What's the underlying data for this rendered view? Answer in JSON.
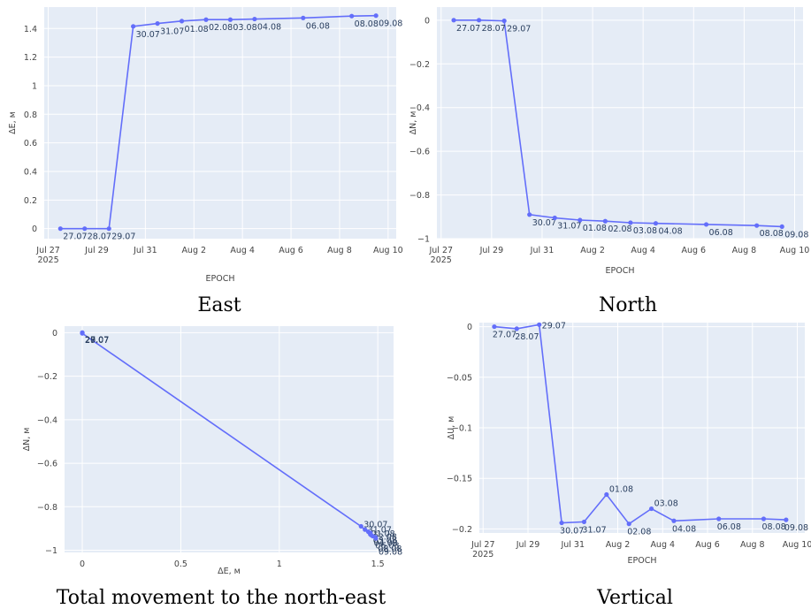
{
  "colors": {
    "plot_bg": "#e5ecf6",
    "grid": "#ffffff",
    "line": "#636efa"
  },
  "chart_data": [
    {
      "type": "line",
      "caption": "East",
      "xlabel": "EPOCH",
      "ylabel": "ΔE, м",
      "xaxis_type": "date",
      "xlim": [
        "2025-07-26T20:00",
        "2025-08-10T08:00"
      ],
      "ylim": [
        -0.07,
        1.55
      ],
      "x_ticks": [
        {
          "value": "2025-07-27",
          "label": "Jul 27",
          "sublabel": "2025"
        },
        {
          "value": "2025-07-29",
          "label": "Jul 29",
          "sublabel": ""
        },
        {
          "value": "2025-07-31",
          "label": "Jul 31",
          "sublabel": ""
        },
        {
          "value": "2025-08-02",
          "label": "Aug 2",
          "sublabel": ""
        },
        {
          "value": "2025-08-04",
          "label": "Aug 4",
          "sublabel": ""
        },
        {
          "value": "2025-08-06",
          "label": "Aug 6",
          "sublabel": ""
        },
        {
          "value": "2025-08-08",
          "label": "Aug 8",
          "sublabel": ""
        },
        {
          "value": "2025-08-10",
          "label": "Aug 10",
          "sublabel": ""
        }
      ],
      "y_ticks": [
        {
          "value": 0,
          "label": "0"
        },
        {
          "value": 0.2,
          "label": "0.2"
        },
        {
          "value": 0.4,
          "label": "0.4"
        },
        {
          "value": 0.6,
          "label": "0.6"
        },
        {
          "value": 0.8,
          "label": "0.8"
        },
        {
          "value": 1,
          "label": "1"
        },
        {
          "value": 1.2,
          "label": "1.2"
        },
        {
          "value": 1.4,
          "label": "1.4"
        }
      ],
      "points": [
        {
          "x": "2025-07-27T12:00",
          "y": 0.0,
          "label": "27.07"
        },
        {
          "x": "2025-07-28T12:00",
          "y": 0.0,
          "label": "28.07"
        },
        {
          "x": "2025-07-29T12:00",
          "y": 0.0,
          "label": "29.07"
        },
        {
          "x": "2025-07-30T12:00",
          "y": 1.415,
          "label": "30.07"
        },
        {
          "x": "2025-07-31T12:00",
          "y": 1.435,
          "label": "31.07"
        },
        {
          "x": "2025-08-01T12:00",
          "y": 1.452,
          "label": "01.08"
        },
        {
          "x": "2025-08-02T12:00",
          "y": 1.462,
          "label": "02.08"
        },
        {
          "x": "2025-08-03T12:00",
          "y": 1.462,
          "label": "03.08"
        },
        {
          "x": "2025-08-04T12:00",
          "y": 1.466,
          "label": "04.08"
        },
        {
          "x": "2025-08-06T12:00",
          "y": 1.474,
          "label": "06.08"
        },
        {
          "x": "2025-08-08T12:00",
          "y": 1.487,
          "label": "08.08"
        },
        {
          "x": "2025-08-09T12:00",
          "y": 1.49,
          "label": "09.08"
        }
      ]
    },
    {
      "type": "line",
      "caption": "North",
      "xlabel": "EPOCH",
      "ylabel": "ΔN, м",
      "xaxis_type": "date",
      "xlim": [
        "2025-07-26T20:00",
        "2025-08-10T08:00"
      ],
      "ylim": [
        -1.0,
        0.06
      ],
      "x_ticks": [
        {
          "value": "2025-07-27",
          "label": "Jul 27",
          "sublabel": "2025"
        },
        {
          "value": "2025-07-29",
          "label": "Jul 29",
          "sublabel": ""
        },
        {
          "value": "2025-07-31",
          "label": "Jul 31",
          "sublabel": ""
        },
        {
          "value": "2025-08-02",
          "label": "Aug 2",
          "sublabel": ""
        },
        {
          "value": "2025-08-04",
          "label": "Aug 4",
          "sublabel": ""
        },
        {
          "value": "2025-08-06",
          "label": "Aug 6",
          "sublabel": ""
        },
        {
          "value": "2025-08-08",
          "label": "Aug 8",
          "sublabel": ""
        },
        {
          "value": "2025-08-10",
          "label": "Aug 10",
          "sublabel": ""
        }
      ],
      "y_ticks": [
        {
          "value": 0,
          "label": "0"
        },
        {
          "value": -0.2,
          "label": "−0.2"
        },
        {
          "value": -0.4,
          "label": "−0.4"
        },
        {
          "value": -0.6,
          "label": "−0.6"
        },
        {
          "value": -0.8,
          "label": "−0.8"
        },
        {
          "value": -1,
          "label": "−1"
        }
      ],
      "points": [
        {
          "x": "2025-07-27T12:00",
          "y": 0.0,
          "label": "27.07"
        },
        {
          "x": "2025-07-28T12:00",
          "y": 0.0,
          "label": "28.07"
        },
        {
          "x": "2025-07-29T12:00",
          "y": -0.003,
          "label": "29.07"
        },
        {
          "x": "2025-07-30T12:00",
          "y": -0.89,
          "label": "30.07"
        },
        {
          "x": "2025-07-31T12:00",
          "y": -0.905,
          "label": "31.07"
        },
        {
          "x": "2025-08-01T12:00",
          "y": -0.915,
          "label": "01.08"
        },
        {
          "x": "2025-08-02T12:00",
          "y": -0.92,
          "label": "02.08"
        },
        {
          "x": "2025-08-03T12:00",
          "y": -0.927,
          "label": "03.08"
        },
        {
          "x": "2025-08-04T12:00",
          "y": -0.93,
          "label": "04.08"
        },
        {
          "x": "2025-08-06T12:00",
          "y": -0.935,
          "label": "06.08"
        },
        {
          "x": "2025-08-08T12:00",
          "y": -0.94,
          "label": "08.08"
        },
        {
          "x": "2025-08-09T12:00",
          "y": -0.945,
          "label": "09.08"
        }
      ]
    },
    {
      "type": "line",
      "caption": "Total movement to the north-east",
      "xlabel": "ΔE, м",
      "ylabel": "ΔN, м",
      "xaxis_type": "linear",
      "xlim": [
        -0.09,
        1.58
      ],
      "ylim": [
        -1.01,
        0.03
      ],
      "x_ticks": [
        {
          "value": 0,
          "label": "0"
        },
        {
          "value": 0.5,
          "label": "0.5"
        },
        {
          "value": 1,
          "label": "1"
        },
        {
          "value": 1.5,
          "label": "1.5"
        }
      ],
      "y_ticks": [
        {
          "value": 0,
          "label": "0"
        },
        {
          "value": -0.2,
          "label": "−0.2"
        },
        {
          "value": -0.4,
          "label": "−0.4"
        },
        {
          "value": -0.6,
          "label": "−0.6"
        },
        {
          "value": -0.8,
          "label": "−0.8"
        },
        {
          "value": -1,
          "label": "−1"
        }
      ],
      "points": [
        {
          "x": 0.0,
          "y": 0.0,
          "label": "27.07"
        },
        {
          "x": 0.0,
          "y": 0.0,
          "label": "28.07"
        },
        {
          "x": 0.0,
          "y": -0.003,
          "label": "29.07"
        },
        {
          "x": 1.415,
          "y": -0.89,
          "label": "30.07"
        },
        {
          "x": 1.435,
          "y": -0.905,
          "label": "31.07"
        },
        {
          "x": 1.452,
          "y": -0.915,
          "label": "01.08"
        },
        {
          "x": 1.462,
          "y": -0.92,
          "label": "02.08"
        },
        {
          "x": 1.462,
          "y": -0.927,
          "label": "03.08"
        },
        {
          "x": 1.466,
          "y": -0.93,
          "label": "04.08"
        },
        {
          "x": 1.474,
          "y": -0.935,
          "label": "06.08"
        },
        {
          "x": 1.487,
          "y": -0.94,
          "label": "08.08"
        },
        {
          "x": 1.49,
          "y": -0.945,
          "label": "09.08"
        }
      ]
    },
    {
      "type": "line",
      "caption": "Vertical",
      "xlabel": "EPOCH",
      "ylabel": "ΔU, м",
      "xaxis_type": "date",
      "xlim": [
        "2025-07-26T20:00",
        "2025-08-10T08:00"
      ],
      "ylim": [
        -0.204,
        0.004
      ],
      "x_ticks": [
        {
          "value": "2025-07-27",
          "label": "Jul 27",
          "sublabel": "2025"
        },
        {
          "value": "2025-07-29",
          "label": "Jul 29",
          "sublabel": ""
        },
        {
          "value": "2025-07-31",
          "label": "Jul 31",
          "sublabel": ""
        },
        {
          "value": "2025-08-02",
          "label": "Aug 2",
          "sublabel": ""
        },
        {
          "value": "2025-08-04",
          "label": "Aug 4",
          "sublabel": ""
        },
        {
          "value": "2025-08-06",
          "label": "Aug 6",
          "sublabel": ""
        },
        {
          "value": "2025-08-08",
          "label": "Aug 8",
          "sublabel": ""
        },
        {
          "value": "2025-08-10",
          "label": "Aug 10",
          "sublabel": ""
        }
      ],
      "y_ticks": [
        {
          "value": 0,
          "label": "0"
        },
        {
          "value": -0.05,
          "label": "−0.05"
        },
        {
          "value": -0.1,
          "label": "−0.1"
        },
        {
          "value": -0.15,
          "label": "−0.15"
        },
        {
          "value": -0.2,
          "label": "−0.2"
        }
      ],
      "points": [
        {
          "x": "2025-07-27T12:00",
          "y": 0.0,
          "label": "27.07"
        },
        {
          "x": "2025-07-28T12:00",
          "y": -0.002,
          "label": "28.07"
        },
        {
          "x": "2025-07-29T12:00",
          "y": 0.002,
          "label": "29.07"
        },
        {
          "x": "2025-07-30T12:00",
          "y": -0.194,
          "label": "30.07"
        },
        {
          "x": "2025-07-31T12:00",
          "y": -0.193,
          "label": "31.07"
        },
        {
          "x": "2025-08-01T12:00",
          "y": -0.166,
          "label": "01.08"
        },
        {
          "x": "2025-08-02T12:00",
          "y": -0.195,
          "label": "02.08"
        },
        {
          "x": "2025-08-03T12:00",
          "y": -0.18,
          "label": "03.08"
        },
        {
          "x": "2025-08-04T12:00",
          "y": -0.192,
          "label": "04.08"
        },
        {
          "x": "2025-08-06T12:00",
          "y": -0.19,
          "label": "06.08"
        },
        {
          "x": "2025-08-08T12:00",
          "y": -0.19,
          "label": "08.08"
        },
        {
          "x": "2025-08-09T12:00",
          "y": -0.191,
          "label": "09.08"
        }
      ]
    }
  ]
}
